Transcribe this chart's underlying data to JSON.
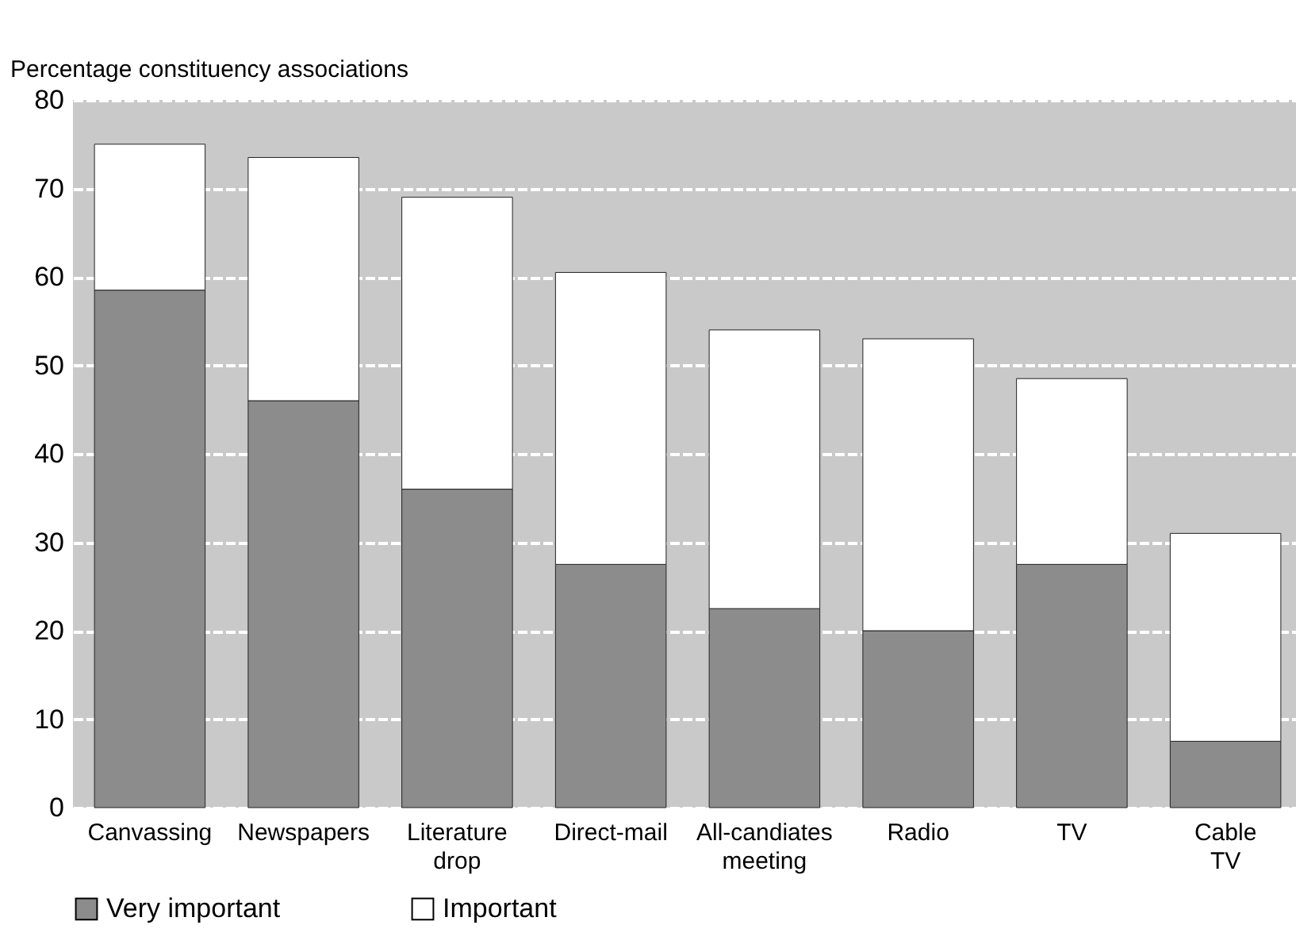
{
  "chart_data": {
    "type": "bar",
    "ylabel": "Percentage constituency associations",
    "categories": [
      "Canvassing",
      "Newspapers",
      "Literature drop",
      "Direct-mail",
      "All-candiates meeting",
      "Radio",
      "TV",
      "Cable TV"
    ],
    "series": [
      {
        "name": "Very important",
        "color": "#8c8c8c",
        "values": [
          58.5,
          46,
          36,
          27.5,
          22.5,
          20,
          27.5,
          7.5
        ]
      },
      {
        "name": "Important",
        "color": "#ffffff",
        "values": [
          16.5,
          27.5,
          33,
          33,
          31.5,
          33,
          21,
          23.5
        ]
      }
    ],
    "stacked": true,
    "ylim": [
      0,
      80
    ],
    "yticks": [
      0,
      10,
      20,
      30,
      40,
      50,
      60,
      70,
      80
    ],
    "grid": "y",
    "legend": "bottom"
  }
}
